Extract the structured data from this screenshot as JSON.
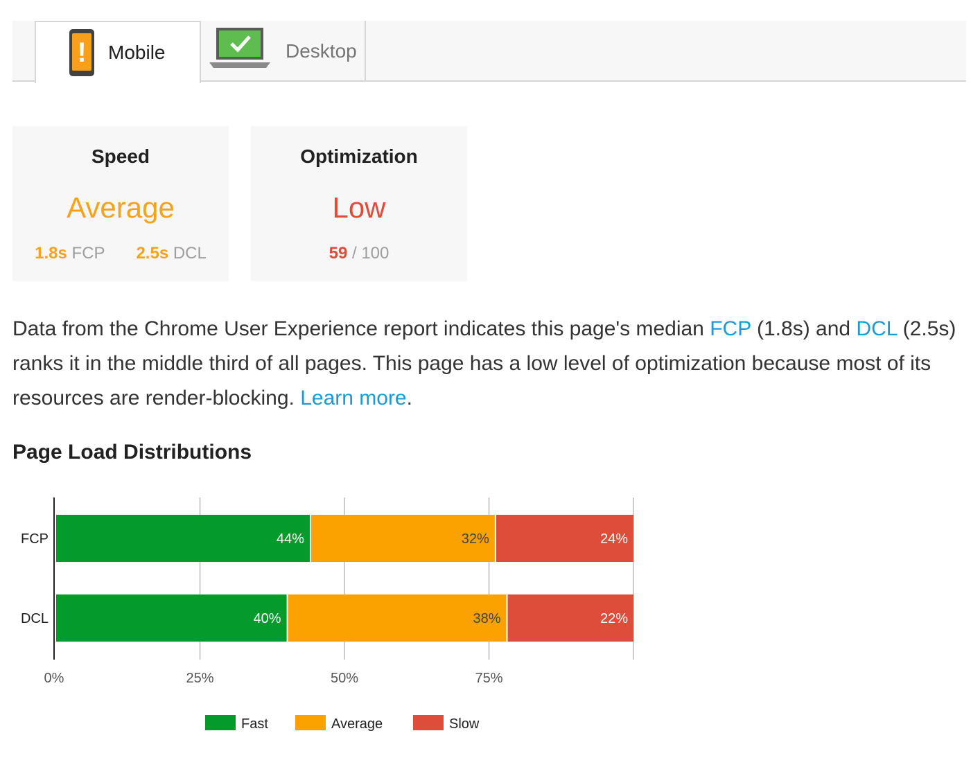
{
  "tabs": [
    {
      "label": "Mobile",
      "active": true,
      "icon": "mobile-warning-icon"
    },
    {
      "label": "Desktop",
      "active": false,
      "icon": "laptop-check-icon"
    }
  ],
  "speed": {
    "title": "Speed",
    "rating": "Average",
    "fcp_value": "1.8s",
    "fcp_label": "FCP",
    "dcl_value": "2.5s",
    "dcl_label": "DCL"
  },
  "optimization": {
    "title": "Optimization",
    "rating": "Low",
    "score": "59",
    "score_suffix": " / 100"
  },
  "description": {
    "part1": "Data from the Chrome User Experience report indicates this page's median ",
    "link_fcp": "FCP",
    "part2": " (1.8s) and ",
    "link_dcl": "DCL",
    "part3": " (2.5s) ranks it in the middle third of all pages. This page has a low level of optimization because most of its resources are render-blocking. ",
    "link_learn": "Learn more",
    "part4": "."
  },
  "section_title": "Page Load Distributions",
  "colors": {
    "fast": "#049a2c",
    "average": "#fba100",
    "slow": "#de4c3a"
  },
  "chart_data": {
    "type": "bar",
    "orientation": "horizontal",
    "stacked": true,
    "categories": [
      "FCP",
      "DCL"
    ],
    "series": [
      {
        "name": "Fast",
        "values": [
          44,
          40
        ],
        "labels": [
          "44%",
          "40%"
        ]
      },
      {
        "name": "Average",
        "values": [
          32,
          38
        ],
        "labels": [
          "32%",
          "38%"
        ]
      },
      {
        "name": "Slow",
        "values": [
          24,
          22
        ],
        "labels": [
          "24%",
          "22%"
        ]
      }
    ],
    "x_ticks": [
      "0%",
      "25%",
      "50%",
      "75%"
    ],
    "xlim": [
      0,
      100
    ],
    "legend": "bottom",
    "grid": true
  }
}
